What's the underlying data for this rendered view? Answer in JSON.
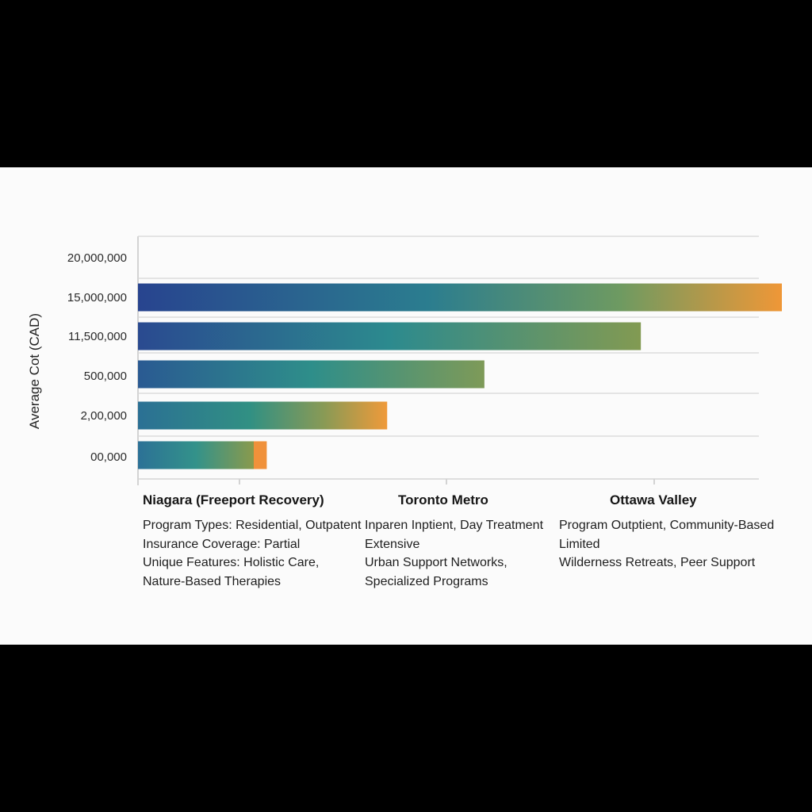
{
  "chart_data": {
    "type": "bar",
    "orientation": "horizontal",
    "ylabel": "Average Cot (CAD)",
    "y_tick_labels": [
      "20,000,000",
      "15,000,000",
      "11,500,000",
      "500,000",
      "2,00,000",
      "00,000"
    ],
    "bars": [
      {
        "value": 1.0
      },
      {
        "value": 0.781
      },
      {
        "value": 0.538
      },
      {
        "value": 0.387
      },
      {
        "value": 0.2
      }
    ],
    "x_scale_note": "bar lengths relative to longest bar (no printed x-axis values)",
    "grid": true,
    "colors": {
      "start": "#27458f",
      "mid": "#2e8c8e",
      "green": "#7e9a55",
      "end": "#ee9838"
    }
  },
  "regions": [
    {
      "title": "Niagara (Freeport Recovery)",
      "lines": [
        "Program Types: Residential, Outpatent",
        "Insurance Coverage: Partial",
        "Unique Features: Holistic Care,",
        "Nature-Based Therapies"
      ]
    },
    {
      "title": "Toronto Metro",
      "lines": [
        "Inparen Inptient, Day Treatment",
        "Extensive",
        "Urban Support Networks,",
        "Specialized Programs"
      ]
    },
    {
      "title": "Ottawa Valley",
      "lines": [
        "Program Outptient, Community-Based",
        "Limited",
        "Wilderness Retreats, Peer Support",
        ""
      ]
    }
  ]
}
